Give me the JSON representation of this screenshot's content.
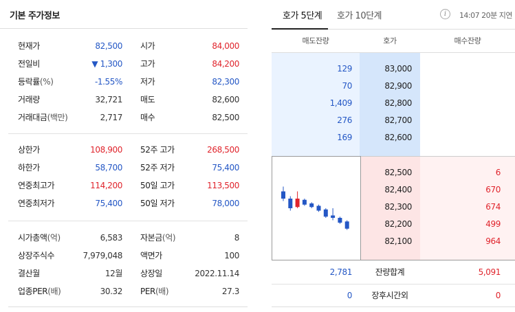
{
  "basic_info": {
    "title": "기본 주가정보",
    "group1": [
      {
        "label": "현재가",
        "value": "82,500",
        "label2": "시가",
        "value2": "84,000"
      },
      {
        "label": "전일비",
        "value": "▼ 1,300",
        "label2": "고가",
        "value2": "84,200"
      },
      {
        "label": "등락률",
        "label_suffix": "(%)",
        "value": "-1.55%",
        "label2": "저가",
        "value2": "82,300"
      },
      {
        "label": "거래량",
        "value": "32,721",
        "label2": "매도",
        "value2": "82,600"
      },
      {
        "label": "거래대금",
        "label_suffix": "(백만)",
        "value": "2,717",
        "label2": "매수",
        "value2": "82,500"
      }
    ],
    "group2": [
      {
        "label": "상한가",
        "value": "108,900",
        "label2": "52주 고가",
        "value2": "268,500"
      },
      {
        "label": "하한가",
        "value": "58,700",
        "label2": "52주 저가",
        "value2": "75,400"
      },
      {
        "label": "연중최고가",
        "value": "114,200",
        "label2": "50일 고가",
        "value2": "113,500"
      },
      {
        "label": "연중최저가",
        "value": "75,400",
        "label2": "50일 저가",
        "value2": "78,000"
      }
    ],
    "group3": [
      {
        "label": "시가총액",
        "label_suffix": "(억)",
        "value": "6,583",
        "label2": "자본금",
        "label2_suffix": "(억)",
        "value2": "8"
      },
      {
        "label": "상장주식수",
        "value": "7,979,048",
        "label2": "액면가",
        "value2": "100"
      },
      {
        "label": "결산월",
        "value": "12월",
        "label2": "상장일",
        "value2": "2022.11.14"
      },
      {
        "label": "업종PER",
        "label_suffix": "(배)",
        "value": "30.32",
        "label2": "PER",
        "label2_suffix": "(배)",
        "value2": "27.3"
      }
    ]
  },
  "orderbook": {
    "tabs": [
      "호가 5단계",
      "호가 10단계"
    ],
    "active_tab": 0,
    "info_icon": "i",
    "delay_text": "14:07 20분 지연",
    "headers": {
      "ask_volume": "매도잔량",
      "price": "호가",
      "bid_volume": "매수잔량"
    },
    "asks": [
      {
        "volume": "129",
        "price": "83,000"
      },
      {
        "volume": "70",
        "price": "82,900"
      },
      {
        "volume": "1,409",
        "price": "82,800"
      },
      {
        "volume": "276",
        "price": "82,700"
      },
      {
        "volume": "169",
        "price": "82,600"
      }
    ],
    "bids": [
      {
        "price": "82,500",
        "volume": "6"
      },
      {
        "price": "82,400",
        "volume": "670"
      },
      {
        "price": "82,300",
        "volume": "674"
      },
      {
        "price": "82,200",
        "volume": "499"
      },
      {
        "price": "82,100",
        "volume": "964"
      }
    ],
    "totals": {
      "ask_total": "2,781",
      "label": "잔량합계",
      "bid_total": "5,091"
    },
    "after_hours": {
      "ask": "0",
      "label": "장후시간외",
      "bid": "0"
    }
  },
  "colors": {
    "up": "#e0242c",
    "down": "#2457c5"
  },
  "mini_chart": {
    "type": "candlestick",
    "candles": [
      {
        "open": 84000,
        "close": 83700,
        "high": 84200,
        "low": 83600,
        "dir": "down"
      },
      {
        "open": 83700,
        "close": 83300,
        "high": 83800,
        "low": 83200,
        "dir": "down"
      },
      {
        "open": 83350,
        "close": 83700,
        "high": 84000,
        "low": 83300,
        "dir": "up"
      },
      {
        "open": 83650,
        "close": 83450,
        "high": 83700,
        "low": 83400,
        "dir": "down"
      },
      {
        "open": 83500,
        "close": 83350,
        "high": 83550,
        "low": 83300,
        "dir": "down"
      },
      {
        "open": 83400,
        "close": 83200,
        "high": 83450,
        "low": 83150,
        "dir": "down"
      },
      {
        "open": 83250,
        "close": 82950,
        "high": 83300,
        "low": 82900,
        "dir": "down"
      },
      {
        "open": 83000,
        "close": 82900,
        "high": 83300,
        "low": 82800,
        "dir": "down"
      },
      {
        "open": 82900,
        "close": 82700,
        "high": 82950,
        "low": 82650,
        "dir": "down"
      },
      {
        "open": 82750,
        "close": 82450,
        "high": 82800,
        "low": 82400,
        "dir": "down"
      }
    ],
    "ylim": [
      82300,
      84300
    ]
  }
}
